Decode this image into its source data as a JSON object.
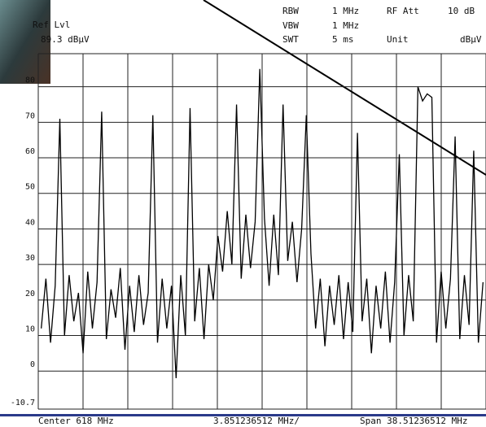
{
  "header": {
    "ref_label": "Ref Lvl",
    "ref_value": "89.3 dBμV",
    "rbw_label": "RBW",
    "rbw_value": "1 MHz",
    "rf_att_label": "RF Att",
    "rf_att_value": "10 dB",
    "vbw_label": "VBW",
    "vbw_value": "1 MHz",
    "swt_label": "SWT",
    "swt_value": "5 ms",
    "unit_label": "Unit",
    "unit_value": "dBμV"
  },
  "footer": {
    "center": "Center 618 MHz",
    "per_div": "3.851236512 MHz/",
    "span": "Span 38.51236512 MHz"
  },
  "chart_data": {
    "type": "line",
    "color": "#000000",
    "xlim": [
      598.74381744,
      637.25618256
    ],
    "ylim": [
      -10.7,
      89.3
    ],
    "yticks": [
      -10.7,
      0,
      10,
      20,
      30,
      40,
      50,
      60,
      70,
      80
    ],
    "grid": true,
    "x": [
      599.0,
      599.4,
      599.8,
      600.2,
      600.6,
      601.0,
      601.4,
      601.8,
      602.2,
      602.6,
      603.0,
      603.4,
      603.8,
      604.2,
      604.6,
      605.0,
      605.4,
      605.8,
      606.2,
      606.6,
      607.0,
      607.4,
      607.8,
      608.2,
      608.6,
      609.0,
      609.4,
      609.8,
      610.2,
      610.6,
      611.0,
      611.4,
      611.8,
      612.2,
      612.6,
      613.0,
      613.4,
      613.8,
      614.2,
      614.6,
      615.0,
      615.4,
      615.8,
      616.2,
      616.6,
      617.0,
      617.4,
      617.8,
      618.2,
      618.6,
      619.0,
      619.4,
      619.8,
      620.2,
      620.6,
      621.0,
      621.4,
      621.8,
      622.2,
      622.6,
      623.0,
      623.4,
      623.8,
      624.2,
      624.6,
      625.0,
      625.4,
      625.8,
      626.2,
      626.6,
      627.0,
      627.4,
      627.8,
      628.2,
      628.6,
      629.0,
      629.4,
      629.8,
      630.2,
      630.6,
      631.0,
      631.4,
      631.8,
      632.2,
      632.6,
      633.0,
      633.4,
      633.8,
      634.2,
      634.6,
      635.0,
      635.4,
      635.8,
      636.2,
      636.6,
      637.0
    ],
    "values": [
      12,
      26,
      8,
      24,
      71,
      10,
      27,
      14,
      22,
      5,
      28,
      12,
      25,
      73,
      9,
      23,
      15,
      29,
      6,
      24,
      11,
      27,
      13,
      22,
      72,
      8,
      26,
      12,
      24,
      -2,
      27,
      10,
      74,
      14,
      29,
      9,
      30,
      20,
      38,
      28,
      45,
      30,
      75,
      26,
      44,
      29,
      42,
      85,
      43,
      24,
      44,
      27,
      75,
      31,
      42,
      25,
      40,
      72,
      33,
      12,
      26,
      7,
      24,
      13,
      27,
      9,
      25,
      11,
      67,
      14,
      26,
      5,
      24,
      12,
      28,
      8,
      25,
      61,
      10,
      27,
      14,
      80,
      76,
      78,
      77,
      8,
      28,
      12,
      26,
      66,
      9,
      27,
      13,
      62,
      8,
      25
    ]
  }
}
